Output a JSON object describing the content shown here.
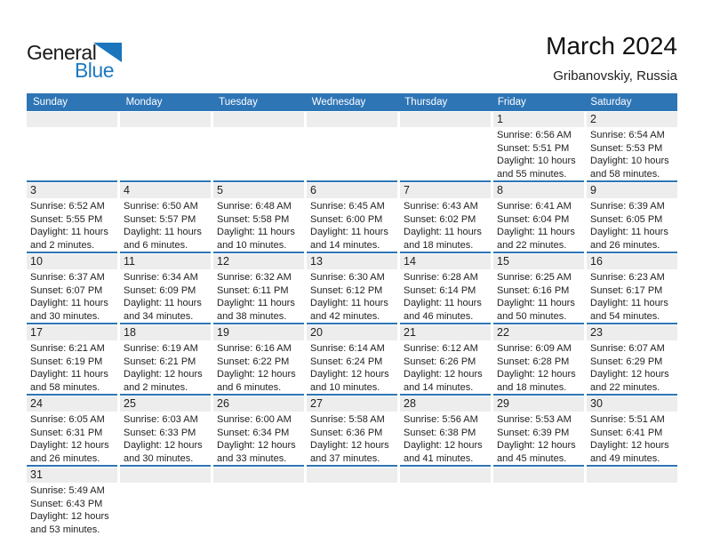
{
  "logo": {
    "part1": "General",
    "part2": "Blue",
    "triangle_color": "#1b75bc",
    "blue_color": "#1e79c0"
  },
  "header": {
    "title": "March 2024",
    "subtitle": "Gribanovskiy, Russia"
  },
  "colors": {
    "accent_blue": "#2e75b6",
    "band_gray": "#ededed"
  },
  "weekdays": [
    "Sunday",
    "Monday",
    "Tuesday",
    "Wednesday",
    "Thursday",
    "Friday",
    "Saturday"
  ],
  "weeks": [
    [
      null,
      null,
      null,
      null,
      null,
      {
        "day": "1",
        "lines": [
          "Sunrise: 6:56 AM",
          "Sunset: 5:51 PM",
          "Daylight: 10 hours",
          "and 55 minutes."
        ]
      },
      {
        "day": "2",
        "lines": [
          "Sunrise: 6:54 AM",
          "Sunset: 5:53 PM",
          "Daylight: 10 hours",
          "and 58 minutes."
        ]
      }
    ],
    [
      {
        "day": "3",
        "lines": [
          "Sunrise: 6:52 AM",
          "Sunset: 5:55 PM",
          "Daylight: 11 hours",
          "and 2 minutes."
        ]
      },
      {
        "day": "4",
        "lines": [
          "Sunrise: 6:50 AM",
          "Sunset: 5:57 PM",
          "Daylight: 11 hours",
          "and 6 minutes."
        ]
      },
      {
        "day": "5",
        "lines": [
          "Sunrise: 6:48 AM",
          "Sunset: 5:58 PM",
          "Daylight: 11 hours",
          "and 10 minutes."
        ]
      },
      {
        "day": "6",
        "lines": [
          "Sunrise: 6:45 AM",
          "Sunset: 6:00 PM",
          "Daylight: 11 hours",
          "and 14 minutes."
        ]
      },
      {
        "day": "7",
        "lines": [
          "Sunrise: 6:43 AM",
          "Sunset: 6:02 PM",
          "Daylight: 11 hours",
          "and 18 minutes."
        ]
      },
      {
        "day": "8",
        "lines": [
          "Sunrise: 6:41 AM",
          "Sunset: 6:04 PM",
          "Daylight: 11 hours",
          "and 22 minutes."
        ]
      },
      {
        "day": "9",
        "lines": [
          "Sunrise: 6:39 AM",
          "Sunset: 6:05 PM",
          "Daylight: 11 hours",
          "and 26 minutes."
        ]
      }
    ],
    [
      {
        "day": "10",
        "lines": [
          "Sunrise: 6:37 AM",
          "Sunset: 6:07 PM",
          "Daylight: 11 hours",
          "and 30 minutes."
        ]
      },
      {
        "day": "11",
        "lines": [
          "Sunrise: 6:34 AM",
          "Sunset: 6:09 PM",
          "Daylight: 11 hours",
          "and 34 minutes."
        ]
      },
      {
        "day": "12",
        "lines": [
          "Sunrise: 6:32 AM",
          "Sunset: 6:11 PM",
          "Daylight: 11 hours",
          "and 38 minutes."
        ]
      },
      {
        "day": "13",
        "lines": [
          "Sunrise: 6:30 AM",
          "Sunset: 6:12 PM",
          "Daylight: 11 hours",
          "and 42 minutes."
        ]
      },
      {
        "day": "14",
        "lines": [
          "Sunrise: 6:28 AM",
          "Sunset: 6:14 PM",
          "Daylight: 11 hours",
          "and 46 minutes."
        ]
      },
      {
        "day": "15",
        "lines": [
          "Sunrise: 6:25 AM",
          "Sunset: 6:16 PM",
          "Daylight: 11 hours",
          "and 50 minutes."
        ]
      },
      {
        "day": "16",
        "lines": [
          "Sunrise: 6:23 AM",
          "Sunset: 6:17 PM",
          "Daylight: 11 hours",
          "and 54 minutes."
        ]
      }
    ],
    [
      {
        "day": "17",
        "lines": [
          "Sunrise: 6:21 AM",
          "Sunset: 6:19 PM",
          "Daylight: 11 hours",
          "and 58 minutes."
        ]
      },
      {
        "day": "18",
        "lines": [
          "Sunrise: 6:19 AM",
          "Sunset: 6:21 PM",
          "Daylight: 12 hours",
          "and 2 minutes."
        ]
      },
      {
        "day": "19",
        "lines": [
          "Sunrise: 6:16 AM",
          "Sunset: 6:22 PM",
          "Daylight: 12 hours",
          "and 6 minutes."
        ]
      },
      {
        "day": "20",
        "lines": [
          "Sunrise: 6:14 AM",
          "Sunset: 6:24 PM",
          "Daylight: 12 hours",
          "and 10 minutes."
        ]
      },
      {
        "day": "21",
        "lines": [
          "Sunrise: 6:12 AM",
          "Sunset: 6:26 PM",
          "Daylight: 12 hours",
          "and 14 minutes."
        ]
      },
      {
        "day": "22",
        "lines": [
          "Sunrise: 6:09 AM",
          "Sunset: 6:28 PM",
          "Daylight: 12 hours",
          "and 18 minutes."
        ]
      },
      {
        "day": "23",
        "lines": [
          "Sunrise: 6:07 AM",
          "Sunset: 6:29 PM",
          "Daylight: 12 hours",
          "and 22 minutes."
        ]
      }
    ],
    [
      {
        "day": "24",
        "lines": [
          "Sunrise: 6:05 AM",
          "Sunset: 6:31 PM",
          "Daylight: 12 hours",
          "and 26 minutes."
        ]
      },
      {
        "day": "25",
        "lines": [
          "Sunrise: 6:03 AM",
          "Sunset: 6:33 PM",
          "Daylight: 12 hours",
          "and 30 minutes."
        ]
      },
      {
        "day": "26",
        "lines": [
          "Sunrise: 6:00 AM",
          "Sunset: 6:34 PM",
          "Daylight: 12 hours",
          "and 33 minutes."
        ]
      },
      {
        "day": "27",
        "lines": [
          "Sunrise: 5:58 AM",
          "Sunset: 6:36 PM",
          "Daylight: 12 hours",
          "and 37 minutes."
        ]
      },
      {
        "day": "28",
        "lines": [
          "Sunrise: 5:56 AM",
          "Sunset: 6:38 PM",
          "Daylight: 12 hours",
          "and 41 minutes."
        ]
      },
      {
        "day": "29",
        "lines": [
          "Sunrise: 5:53 AM",
          "Sunset: 6:39 PM",
          "Daylight: 12 hours",
          "and 45 minutes."
        ]
      },
      {
        "day": "30",
        "lines": [
          "Sunrise: 5:51 AM",
          "Sunset: 6:41 PM",
          "Daylight: 12 hours",
          "and 49 minutes."
        ]
      }
    ],
    [
      {
        "day": "31",
        "lines": [
          "Sunrise: 5:49 AM",
          "Sunset: 6:43 PM",
          "Daylight: 12 hours",
          "and 53 minutes."
        ]
      },
      null,
      null,
      null,
      null,
      null,
      null
    ]
  ]
}
